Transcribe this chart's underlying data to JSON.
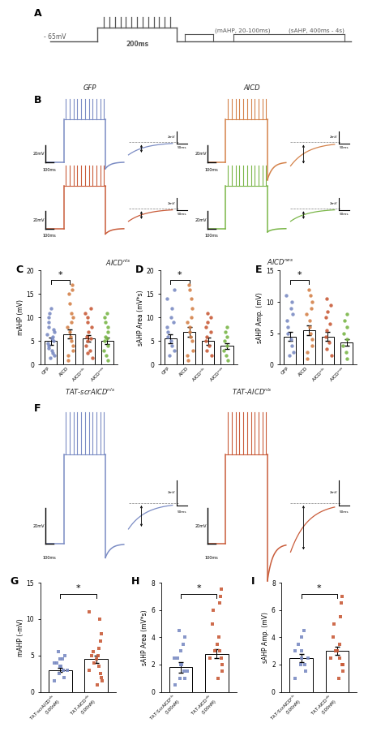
{
  "panel_A": {
    "label": "A",
    "vm_label": "-65mV",
    "time_200ms": "200ms",
    "mAHP_label": "(mAHP, 20-100ms)",
    "sAHP_label": "(sAHP, 400ms - 4s)"
  },
  "panel_B": {
    "label": "B",
    "titles": [
      "GFP",
      "AICD",
      "AICD$^{nls}$",
      "AICD$^{nes}$"
    ],
    "subtitles": [
      "AICD$^{nls}$",
      "AICD$^{nes}$"
    ],
    "colors": [
      "#7b8cc4",
      "#d4824a",
      "#c95c3a",
      "#7ab648"
    ]
  },
  "panel_C": {
    "label": "C",
    "ylabel": "mAHP (mV)",
    "ylim": [
      0,
      20
    ],
    "yticks": [
      0,
      5,
      10,
      15,
      20
    ],
    "bar_means": [
      5.0,
      6.5,
      5.5,
      5.0
    ],
    "bar_sems": [
      0.8,
      0.9,
      0.7,
      0.7
    ],
    "bar_colors": [
      "#7b8cc4",
      "#d4824a",
      "#c95c3a",
      "#7ab648"
    ],
    "dot_data": {
      "GFP": [
        1.5,
        2.0,
        2.5,
        3.0,
        3.5,
        4.0,
        4.5,
        5.0,
        5.5,
        6.0,
        6.5,
        7.0,
        7.5,
        8.0,
        9.0,
        10.0,
        11.0,
        12.0
      ],
      "AICD": [
        1.0,
        2.0,
        3.0,
        4.0,
        5.0,
        6.0,
        7.0,
        8.0,
        9.0,
        10.0,
        11.0,
        13.0,
        15.0,
        16.0,
        17.0
      ],
      "AICDnls": [
        1.5,
        2.5,
        3.0,
        4.0,
        5.0,
        5.5,
        6.0,
        7.0,
        8.0,
        9.0,
        10.0,
        11.0,
        12.0
      ],
      "AICDnes": [
        1.0,
        2.0,
        3.0,
        4.0,
        5.0,
        5.5,
        6.0,
        7.0,
        8.0,
        9.0,
        10.0,
        11.0
      ]
    }
  },
  "panel_D": {
    "label": "D",
    "ylabel": "sAHP Area (mV*s)",
    "ylim": [
      0,
      20
    ],
    "yticks": [
      0,
      5,
      10,
      15,
      20
    ],
    "bar_means": [
      5.5,
      7.0,
      5.0,
      4.0
    ],
    "bar_sems": [
      0.9,
      1.0,
      0.8,
      0.6
    ],
    "bar_colors": [
      "#7b8cc4",
      "#d4824a",
      "#c95c3a",
      "#7ab648"
    ],
    "dot_data": {
      "GFP": [
        2.0,
        3.0,
        4.0,
        5.0,
        6.0,
        7.0,
        8.0,
        9.0,
        10.0,
        12.0,
        14.0,
        16.0
      ],
      "AICD": [
        1.0,
        2.0,
        3.0,
        5.0,
        6.0,
        7.0,
        8.0,
        9.0,
        10.0,
        12.0,
        14.0,
        16.0,
        17.0
      ],
      "AICDnls": [
        2.0,
        3.0,
        4.0,
        5.0,
        6.0,
        7.0,
        8.0,
        9.0,
        10.0,
        11.0
      ],
      "AICDnes": [
        1.0,
        2.0,
        3.0,
        4.0,
        5.0,
        6.0,
        7.0,
        8.0
      ]
    }
  },
  "panel_E": {
    "label": "E",
    "ylabel": "sAHP Amp. (mV)",
    "ylim": [
      0,
      15
    ],
    "yticks": [
      0,
      5,
      10,
      15
    ],
    "bar_means": [
      4.5,
      5.5,
      4.5,
      3.5
    ],
    "bar_sems": [
      0.7,
      0.8,
      0.7,
      0.5
    ],
    "bar_colors": [
      "#7b8cc4",
      "#d4824a",
      "#c95c3a",
      "#7ab648"
    ],
    "dot_data": {
      "GFP": [
        1.5,
        2.0,
        3.0,
        4.0,
        5.0,
        6.0,
        7.0,
        8.0,
        9.0,
        10.0,
        11.0
      ],
      "AICD": [
        1.0,
        2.0,
        3.0,
        4.0,
        5.0,
        6.0,
        7.0,
        8.0,
        9.0,
        10.0,
        11.0,
        12.0
      ],
      "AICDnls": [
        1.5,
        2.5,
        3.5,
        4.5,
        5.5,
        6.5,
        7.5,
        8.5,
        9.5,
        10.5
      ],
      "AICDnes": [
        1.0,
        2.0,
        3.0,
        4.0,
        5.0,
        6.0,
        7.0,
        8.0
      ]
    }
  },
  "panel_G": {
    "label": "G",
    "ylabel": "mAHP (-mV)",
    "ylim": [
      0,
      15
    ],
    "yticks": [
      0,
      5,
      10,
      15
    ],
    "bar_means": [
      3.0,
      4.5
    ],
    "bar_sems": [
      0.3,
      0.5
    ],
    "bar_colors": [
      "#7b8cc4",
      "#c95c3a"
    ],
    "dot_data": {
      "scr": [
        1.5,
        2.0,
        2.5,
        3.0,
        3.0,
        3.5,
        3.5,
        4.0,
        4.0,
        4.5,
        4.5,
        5.0,
        5.5
      ],
      "AICD": [
        1.0,
        1.5,
        2.0,
        2.5,
        3.0,
        3.5,
        4.0,
        4.5,
        5.0,
        5.0,
        5.5,
        6.0,
        7.0,
        8.0,
        10.0,
        11.0
      ]
    },
    "xlabels": [
      "TAT-scrAICD$^{nls}$\n(100nM)",
      "TAT-AICD$^{nls}$\n(100nM)"
    ]
  },
  "panel_H": {
    "label": "H",
    "ylabel": "sAHP Area (mV*s)",
    "ylim": [
      0,
      8
    ],
    "yticks": [
      0,
      2,
      4,
      6,
      8
    ],
    "bar_means": [
      1.8,
      2.8
    ],
    "bar_sems": [
      0.4,
      0.3
    ],
    "bar_colors": [
      "#7b8cc4",
      "#c95c3a"
    ],
    "dot_data": {
      "scr": [
        0.5,
        1.0,
        1.0,
        1.5,
        1.5,
        2.0,
        2.0,
        2.5,
        2.5,
        3.0,
        3.5,
        4.0,
        4.5
      ],
      "AICD": [
        1.0,
        1.5,
        2.0,
        2.5,
        2.5,
        3.0,
        3.0,
        3.5,
        4.0,
        5.0,
        6.0,
        6.5,
        7.0,
        7.5
      ]
    },
    "xlabels": [
      "TAT-ScrAICD$^{nls}$\n(100nM)",
      "TAT-AICD$^{nls}$\n(100nM)"
    ]
  },
  "panel_I": {
    "label": "I",
    "ylabel": "sAHP Amp. (mV)",
    "ylim": [
      0,
      8
    ],
    "yticks": [
      0,
      2,
      4,
      6,
      8
    ],
    "bar_means": [
      2.5,
      3.0
    ],
    "bar_sems": [
      0.3,
      0.3
    ],
    "bar_colors": [
      "#7b8cc4",
      "#c95c3a"
    ],
    "dot_data": {
      "scr": [
        1.0,
        1.5,
        2.0,
        2.0,
        2.5,
        2.5,
        3.0,
        3.0,
        3.5,
        4.0,
        4.5
      ],
      "AICD": [
        1.0,
        1.5,
        2.0,
        2.0,
        2.5,
        2.5,
        3.0,
        3.0,
        3.5,
        4.0,
        5.0,
        5.5,
        6.5,
        7.0
      ]
    },
    "xlabels": [
      "TAT-ScrAICD$^{nls}$\n(100nM)",
      "TAT-AICD$^{nls}$\n(100nM)"
    ]
  }
}
